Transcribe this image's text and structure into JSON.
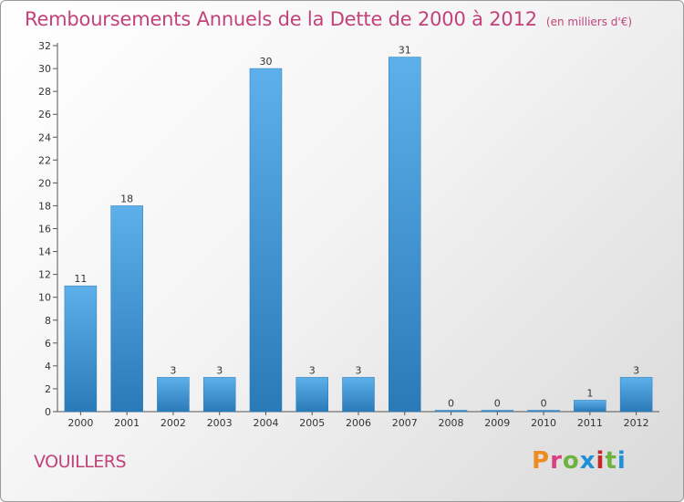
{
  "header": {
    "title": "Remboursements Annuels de la Dette de 2000 à 2012",
    "unit": "(en milliers d'€)"
  },
  "footer": {
    "commune": "VOUILLERS",
    "brand": "Proxiti",
    "brand_colors": [
      "#f08c1e",
      "#d9417e",
      "#6cb33f",
      "#1f8fd6",
      "#c62828",
      "#6cb33f",
      "#1f8fd6"
    ]
  },
  "colors": {
    "title": "#c2427a",
    "bar_top": "#5db0ea",
    "bar_bottom": "#2a7ab8",
    "axis": "#555555"
  },
  "chart_data": {
    "type": "bar",
    "categories": [
      "2000",
      "2001",
      "2002",
      "2003",
      "2004",
      "2005",
      "2006",
      "2007",
      "2008",
      "2009",
      "2010",
      "2011",
      "2012"
    ],
    "values": [
      11,
      18,
      3,
      3,
      30,
      3,
      3,
      31,
      0,
      0,
      0,
      1,
      3
    ],
    "data_labels": [
      "11",
      "18",
      "3",
      "3",
      "30",
      "3",
      "3",
      "31",
      "0",
      "0",
      "0",
      "1",
      "3"
    ],
    "title": "Remboursements Annuels de la Dette de 2000 à 2012",
    "unit": "(en milliers d'€)",
    "xlabel": "",
    "ylabel": "",
    "ylim": [
      0,
      32
    ],
    "yticks": [
      0,
      2,
      4,
      6,
      8,
      10,
      12,
      14,
      16,
      18,
      20,
      22,
      24,
      26,
      28,
      30,
      32
    ],
    "grid": false,
    "legend": "none"
  }
}
